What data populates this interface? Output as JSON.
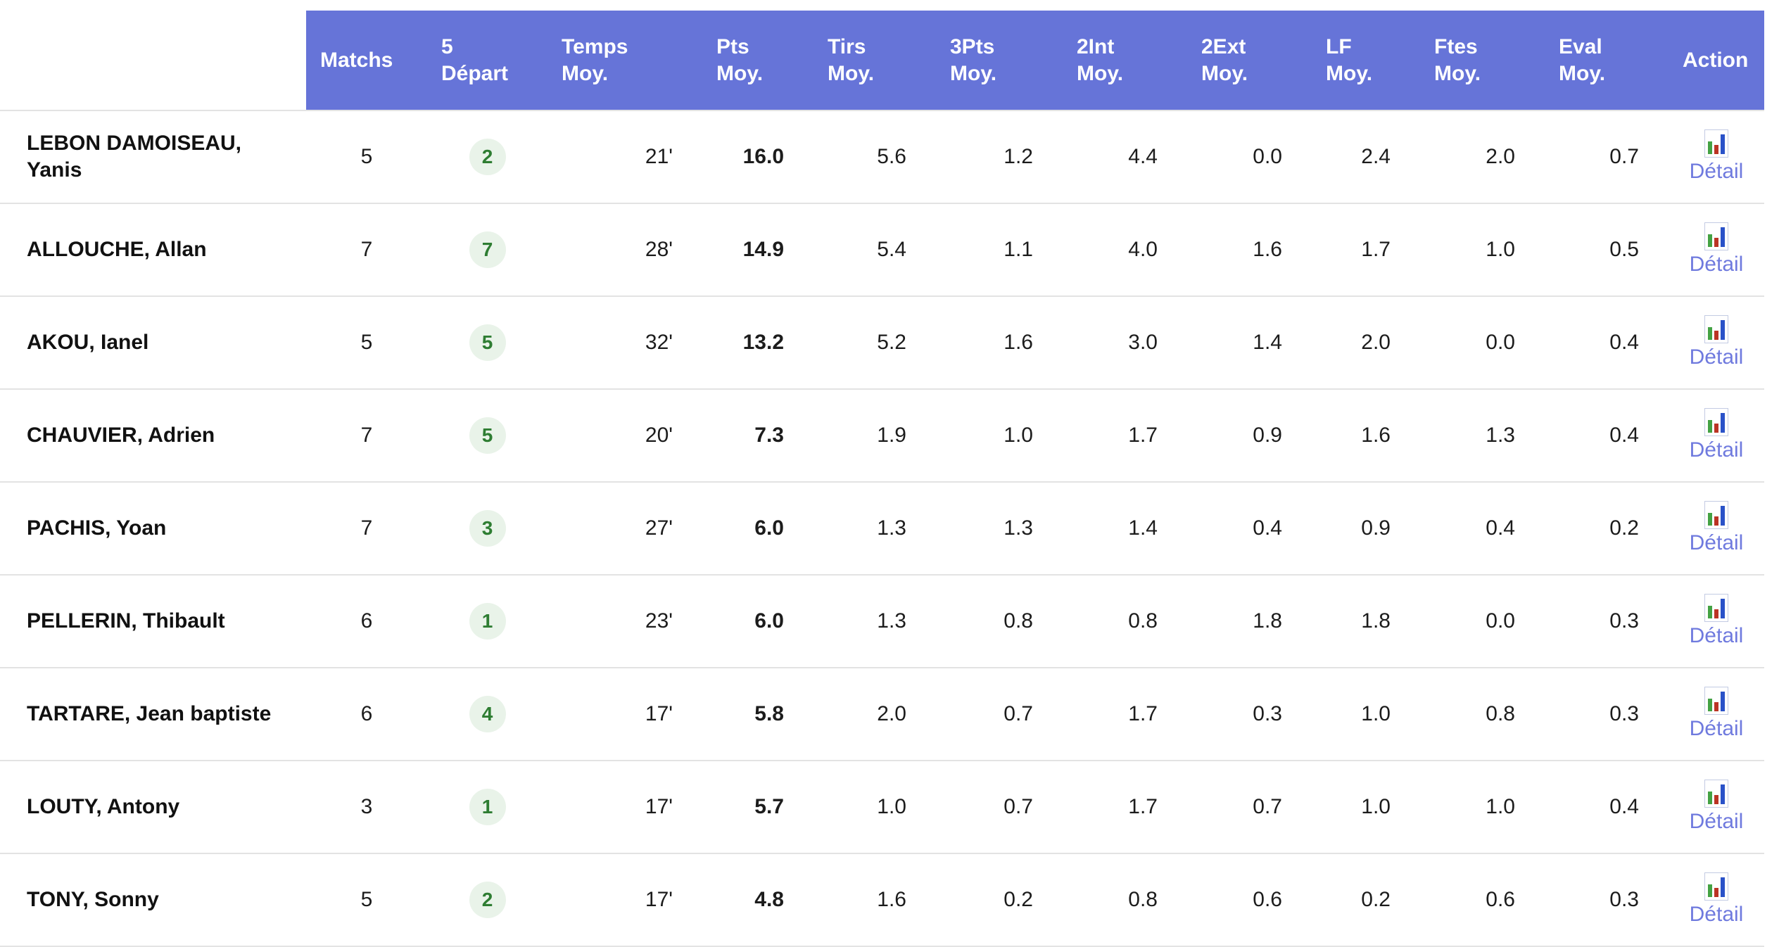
{
  "table": {
    "columns": [
      {
        "key": "name",
        "label": ""
      },
      {
        "key": "matchs",
        "label": "Matchs"
      },
      {
        "key": "depart",
        "label": "5\nDépart"
      },
      {
        "key": "temps",
        "label": "Temps\nMoy."
      },
      {
        "key": "pts",
        "label": "Pts\nMoy."
      },
      {
        "key": "tirs",
        "label": "Tirs\nMoy."
      },
      {
        "key": "pts3",
        "label": "3Pts\nMoy."
      },
      {
        "key": "int2",
        "label": "2Int\nMoy."
      },
      {
        "key": "ext2",
        "label": "2Ext\nMoy."
      },
      {
        "key": "lf",
        "label": "LF\nMoy."
      },
      {
        "key": "ftes",
        "label": "Ftes\nMoy."
      },
      {
        "key": "eval",
        "label": "Eval\nMoy."
      },
      {
        "key": "action",
        "label": "Action"
      }
    ],
    "labels": {
      "detail": "Détail"
    },
    "rows": [
      {
        "name": "LEBON DAMOISEAU, Yanis",
        "matchs": "5",
        "depart": "2",
        "temps": "21'",
        "pts": "16.0",
        "tirs": "5.6",
        "pts3": "1.2",
        "int2": "4.4",
        "ext2": "0.0",
        "lf": "2.4",
        "ftes": "2.0",
        "eval": "0.7"
      },
      {
        "name": "ALLOUCHE, Allan",
        "matchs": "7",
        "depart": "7",
        "temps": "28'",
        "pts": "14.9",
        "tirs": "5.4",
        "pts3": "1.1",
        "int2": "4.0",
        "ext2": "1.6",
        "lf": "1.7",
        "ftes": "1.0",
        "eval": "0.5"
      },
      {
        "name": "AKOU, Ianel",
        "matchs": "5",
        "depart": "5",
        "temps": "32'",
        "pts": "13.2",
        "tirs": "5.2",
        "pts3": "1.6",
        "int2": "3.0",
        "ext2": "1.4",
        "lf": "2.0",
        "ftes": "0.0",
        "eval": "0.4"
      },
      {
        "name": "CHAUVIER, Adrien",
        "matchs": "7",
        "depart": "5",
        "temps": "20'",
        "pts": "7.3",
        "tirs": "1.9",
        "pts3": "1.0",
        "int2": "1.7",
        "ext2": "0.9",
        "lf": "1.6",
        "ftes": "1.3",
        "eval": "0.4"
      },
      {
        "name": "PACHIS, Yoan",
        "matchs": "7",
        "depart": "3",
        "temps": "27'",
        "pts": "6.0",
        "tirs": "1.3",
        "pts3": "1.3",
        "int2": "1.4",
        "ext2": "0.4",
        "lf": "0.9",
        "ftes": "0.4",
        "eval": "0.2"
      },
      {
        "name": "PELLERIN, Thibault",
        "matchs": "6",
        "depart": "1",
        "temps": "23'",
        "pts": "6.0",
        "tirs": "1.3",
        "pts3": "0.8",
        "int2": "0.8",
        "ext2": "1.8",
        "lf": "1.8",
        "ftes": "0.0",
        "eval": "0.3"
      },
      {
        "name": "TARTARE, Jean baptiste",
        "matchs": "6",
        "depart": "4",
        "temps": "17'",
        "pts": "5.8",
        "tirs": "2.0",
        "pts3": "0.7",
        "int2": "1.7",
        "ext2": "0.3",
        "lf": "1.0",
        "ftes": "0.8",
        "eval": "0.3"
      },
      {
        "name": "LOUTY, Antony",
        "matchs": "3",
        "depart": "1",
        "temps": "17'",
        "pts": "5.7",
        "tirs": "1.0",
        "pts3": "0.7",
        "int2": "1.7",
        "ext2": "0.7",
        "lf": "1.0",
        "ftes": "1.0",
        "eval": "0.4"
      },
      {
        "name": "TONY, Sonny",
        "matchs": "5",
        "depart": "2",
        "temps": "17'",
        "pts": "4.8",
        "tirs": "1.6",
        "pts3": "0.2",
        "int2": "0.8",
        "ext2": "0.6",
        "lf": "0.2",
        "ftes": "0.6",
        "eval": "0.3"
      }
    ]
  },
  "colors": {
    "header_bg": "#6674d8",
    "header_text": "#ffffff",
    "row_divider": "#e3e3e3",
    "name_text": "#111111",
    "value_text": "#1c1c1c",
    "badge_bg": "#e9f3e9",
    "badge_text": "#2e7d32",
    "link": "#6f7ade",
    "icon_green": "#44a244",
    "icon_red": "#bb3424",
    "icon_blue": "#2a52c8",
    "icon_border": "#c3cbe3"
  }
}
